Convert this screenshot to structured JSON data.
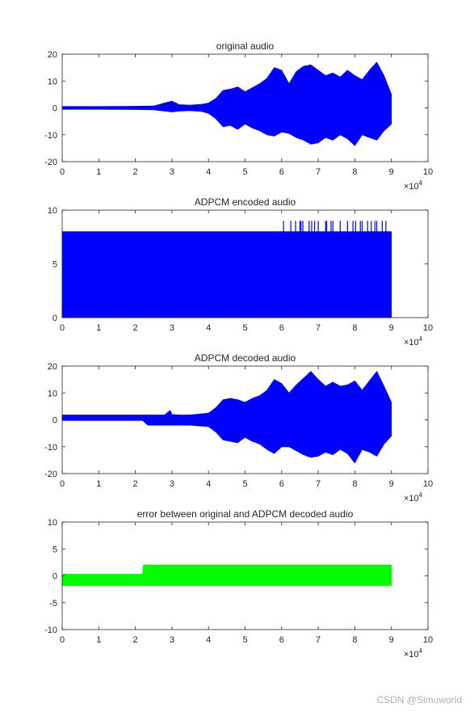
{
  "watermark": "CSDN @Simuworld",
  "colors": {
    "blue": "#0000ff",
    "green": "#00ff00",
    "axis": "#262626",
    "background": "#ffffff"
  },
  "chart_data": [
    {
      "type": "line",
      "title": "original audio",
      "xlim": [
        0,
        100000
      ],
      "ylim": [
        -20,
        20
      ],
      "xticks": [
        0,
        1,
        2,
        3,
        4,
        5,
        6,
        7,
        8,
        9,
        10
      ],
      "yticks": [
        -20,
        -10,
        0,
        10,
        20
      ],
      "x_multiplier_label": "×10",
      "x_multiplier_exponent": "4",
      "color": "#0000ff",
      "series": [
        {
          "x": [
            0,
            10000,
            20000,
            25000,
            28000,
            30000,
            32000,
            35000,
            38000,
            40000,
            42000,
            44000,
            46000,
            48000,
            50000,
            52000,
            54000,
            56000,
            58000,
            60000,
            62000,
            64000,
            66000,
            68000,
            70000,
            72000,
            74000,
            76000,
            78000,
            80000,
            82000,
            84000,
            86000,
            88000,
            90000
          ],
          "upper": [
            0.5,
            0.5,
            0.6,
            0.7,
            1.8,
            2.5,
            1.2,
            1.0,
            1.3,
            1.8,
            3.5,
            6.5,
            7.0,
            7.8,
            6.0,
            7.5,
            9.0,
            11.0,
            15.0,
            14.0,
            9.0,
            13.5,
            15.5,
            16.0,
            14.0,
            12.0,
            13.0,
            11.5,
            14.0,
            12.0,
            10.5,
            14.0,
            17.0,
            12.0,
            5.0
          ],
          "lower": [
            -0.5,
            -0.5,
            -0.6,
            -0.7,
            -1.2,
            -1.5,
            -1.2,
            -1.0,
            -1.3,
            -2.0,
            -4.0,
            -7.0,
            -6.5,
            -8.0,
            -6.0,
            -7.5,
            -8.5,
            -10.0,
            -10.5,
            -9.0,
            -9.5,
            -11.0,
            -12.0,
            -13.5,
            -13.0,
            -11.0,
            -12.0,
            -10.0,
            -11.5,
            -14.0,
            -10.0,
            -11.0,
            -12.0,
            -8.5,
            -6.0
          ]
        }
      ]
    },
    {
      "type": "line",
      "title": "ADPCM encoded audio",
      "xlim": [
        0,
        100000
      ],
      "ylim": [
        0,
        10
      ],
      "xticks": [
        0,
        1,
        2,
        3,
        4,
        5,
        6,
        7,
        8,
        9,
        10
      ],
      "yticks": [
        0,
        5,
        10
      ],
      "x_multiplier_label": "×10",
      "x_multiplier_exponent": "4",
      "color": "#0000ff",
      "series": [
        {
          "x": [
            0,
            90000
          ],
          "upper": [
            8,
            8
          ],
          "lower": [
            0,
            0
          ],
          "spikes": {
            "value": 9,
            "positions": [
              60500,
              62500,
              63800,
              65000,
              65300,
              65800,
              67500,
              68200,
              69000,
              70000,
              72000,
              72300,
              73500,
              74000,
              76000,
              78000,
              79500,
              80200,
              81500,
              82000,
              83500,
              84500,
              85500,
              86000,
              87500,
              88500
            ]
          }
        }
      ]
    },
    {
      "type": "line",
      "title": "ADPCM decoded audio",
      "xlim": [
        0,
        100000
      ],
      "ylim": [
        -20,
        20
      ],
      "xticks": [
        0,
        1,
        2,
        3,
        4,
        5,
        6,
        7,
        8,
        9,
        10
      ],
      "yticks": [
        -20,
        -10,
        0,
        10,
        20
      ],
      "x_multiplier_label": "×10",
      "x_multiplier_exponent": "4",
      "color": "#0000ff",
      "series": [
        {
          "x": [
            0,
            22000,
            23000,
            23500,
            28000,
            29500,
            30000,
            32000,
            35000,
            40000,
            42000,
            44000,
            46000,
            48000,
            50000,
            52000,
            54000,
            56000,
            58000,
            60000,
            62000,
            64000,
            66000,
            68000,
            70000,
            72000,
            74000,
            76000,
            78000,
            80000,
            82000,
            84000,
            86000,
            88000,
            90000
          ],
          "upper": [
            1.8,
            1.8,
            1.8,
            1.8,
            1.8,
            3.5,
            2.0,
            1.8,
            1.8,
            2.5,
            4.5,
            7.5,
            8.0,
            7.5,
            6.5,
            8.0,
            9.0,
            11.0,
            15.0,
            13.5,
            10.0,
            13.0,
            15.5,
            18.0,
            15.0,
            12.5,
            14.0,
            12.5,
            13.0,
            14.5,
            11.0,
            14.5,
            18.0,
            12.5,
            6.5
          ],
          "lower": [
            -0.2,
            -0.2,
            -1.5,
            -2.0,
            -2.0,
            -2.0,
            -2.0,
            -2.0,
            -2.0,
            -2.5,
            -4.5,
            -7.5,
            -8.0,
            -8.5,
            -6.5,
            -8.0,
            -9.0,
            -11.0,
            -12.5,
            -10.0,
            -10.0,
            -11.5,
            -13.0,
            -14.0,
            -13.5,
            -12.0,
            -13.0,
            -11.0,
            -12.5,
            -16.0,
            -11.0,
            -12.0,
            -13.5,
            -9.0,
            -6.0
          ]
        }
      ]
    },
    {
      "type": "line",
      "title": "error between original and ADPCM decoded audio",
      "xlim": [
        0,
        100000
      ],
      "ylim": [
        -10,
        10
      ],
      "xticks": [
        0,
        1,
        2,
        3,
        4,
        5,
        6,
        7,
        8,
        9,
        10
      ],
      "yticks": [
        -10,
        -5,
        0,
        5,
        10
      ],
      "x_multiplier_label": "×10",
      "x_multiplier_exponent": "4",
      "color": "#00ff00",
      "series": [
        {
          "x": [
            0,
            22000,
            22200,
            22600,
            23000,
            90000
          ],
          "upper": [
            0.3,
            0.3,
            2.0,
            2.0,
            2.0,
            2.0
          ],
          "lower": [
            -1.8,
            -1.8,
            -1.8,
            -1.8,
            -1.8,
            -1.8
          ]
        }
      ]
    }
  ]
}
